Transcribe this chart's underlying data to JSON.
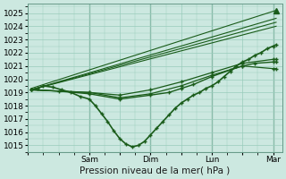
{
  "bg_color": "#cce8e0",
  "plot_bg": "#cce8e0",
  "grid_color": "#99ccbb",
  "line_color": "#1a5c1a",
  "title": "Pression niveau de la mer( hPa )",
  "ylabel_ticks": [
    1015,
    1016,
    1017,
    1018,
    1019,
    1020,
    1021,
    1022,
    1023,
    1024,
    1025
  ],
  "xlim": [
    0,
    4.15
  ],
  "ylim": [
    1014.5,
    1025.7
  ],
  "xtick_labels": [
    "",
    "Sam",
    "",
    "Dim",
    "",
    "Lun",
    "",
    "Mar"
  ],
  "xtick_positions": [
    0,
    1,
    1.5,
    2,
    2.5,
    3,
    3.5,
    4
  ],
  "vline_positions": [
    1,
    2,
    3,
    4
  ],
  "vline_color": "#669988",
  "series": [
    {
      "comment": "main observed line with markers - dips to 1015",
      "x": [
        0.05,
        0.15,
        0.25,
        0.4,
        0.55,
        0.7,
        0.85,
        1.0,
        1.1,
        1.2,
        1.3,
        1.4,
        1.5,
        1.6,
        1.7,
        1.8,
        1.9,
        2.0,
        2.1,
        2.2,
        2.3,
        2.4,
        2.5,
        2.6,
        2.7,
        2.8,
        2.9,
        3.0,
        3.1,
        3.2,
        3.3,
        3.4,
        3.5,
        3.6,
        3.7,
        3.8,
        3.9,
        4.0,
        4.05
      ],
      "y": [
        1019.2,
        1019.3,
        1019.5,
        1019.4,
        1019.2,
        1019.0,
        1018.7,
        1018.5,
        1018.0,
        1017.4,
        1016.8,
        1016.1,
        1015.5,
        1015.1,
        1014.9,
        1015.0,
        1015.3,
        1015.8,
        1016.3,
        1016.8,
        1017.3,
        1017.8,
        1018.2,
        1018.5,
        1018.8,
        1019.0,
        1019.3,
        1019.5,
        1019.8,
        1020.2,
        1020.6,
        1021.0,
        1021.3,
        1021.5,
        1021.8,
        1022.0,
        1022.3,
        1022.5,
        1022.6
      ],
      "marker": "+",
      "markersize": 3.5,
      "linewidth": 1.2,
      "zorder": 4
    },
    {
      "comment": "forecast line 1 - straight nearly to 1024",
      "x": [
        0.05,
        4.05
      ],
      "y": [
        1019.2,
        1024.0
      ],
      "marker": null,
      "markersize": 0,
      "linewidth": 0.8,
      "zorder": 3
    },
    {
      "comment": "forecast line 2",
      "x": [
        0.05,
        4.05
      ],
      "y": [
        1019.2,
        1024.3
      ],
      "marker": null,
      "markersize": 0,
      "linewidth": 0.8,
      "zorder": 3
    },
    {
      "comment": "forecast line 3",
      "x": [
        0.05,
        4.05
      ],
      "y": [
        1019.2,
        1024.6
      ],
      "marker": null,
      "markersize": 0,
      "linewidth": 0.8,
      "zorder": 3
    },
    {
      "comment": "forecast line 4 - highest",
      "x": [
        0.05,
        4.05
      ],
      "y": [
        1019.3,
        1025.2
      ],
      "marker": null,
      "markersize": 0,
      "linewidth": 0.8,
      "zorder": 3
    },
    {
      "comment": "forecast line 5 - slightly lower end",
      "x": [
        0.05,
        1.0,
        1.5,
        2.0,
        2.5,
        3.0,
        3.5,
        4.0,
        4.05
      ],
      "y": [
        1019.2,
        1019.0,
        1018.8,
        1019.2,
        1019.8,
        1020.5,
        1021.2,
        1021.5,
        1021.5
      ],
      "marker": "+",
      "markersize": 3.0,
      "linewidth": 0.9,
      "zorder": 3
    },
    {
      "comment": "forecast line 6 - medium end",
      "x": [
        0.05,
        1.0,
        1.5,
        2.0,
        2.5,
        3.0,
        3.5,
        4.0,
        4.05
      ],
      "y": [
        1019.2,
        1019.0,
        1018.6,
        1018.9,
        1019.5,
        1020.3,
        1021.0,
        1020.8,
        1020.8
      ],
      "marker": "+",
      "markersize": 3.0,
      "linewidth": 0.9,
      "zorder": 3
    },
    {
      "comment": "medium forecast curve with markers around 1021",
      "x": [
        0.05,
        0.5,
        1.0,
        1.5,
        2.0,
        2.3,
        2.5,
        2.7,
        3.0,
        3.3,
        3.5,
        3.7,
        4.0,
        4.05
      ],
      "y": [
        1019.2,
        1019.1,
        1018.9,
        1018.5,
        1018.8,
        1019.0,
        1019.3,
        1019.6,
        1020.2,
        1020.7,
        1021.0,
        1021.2,
        1021.3,
        1021.3
      ],
      "marker": "+",
      "markersize": 3.0,
      "linewidth": 1.0,
      "zorder": 3
    }
  ],
  "triangle_x": 4.05,
  "triangle_y": 1025.2,
  "triangle_size": 5
}
